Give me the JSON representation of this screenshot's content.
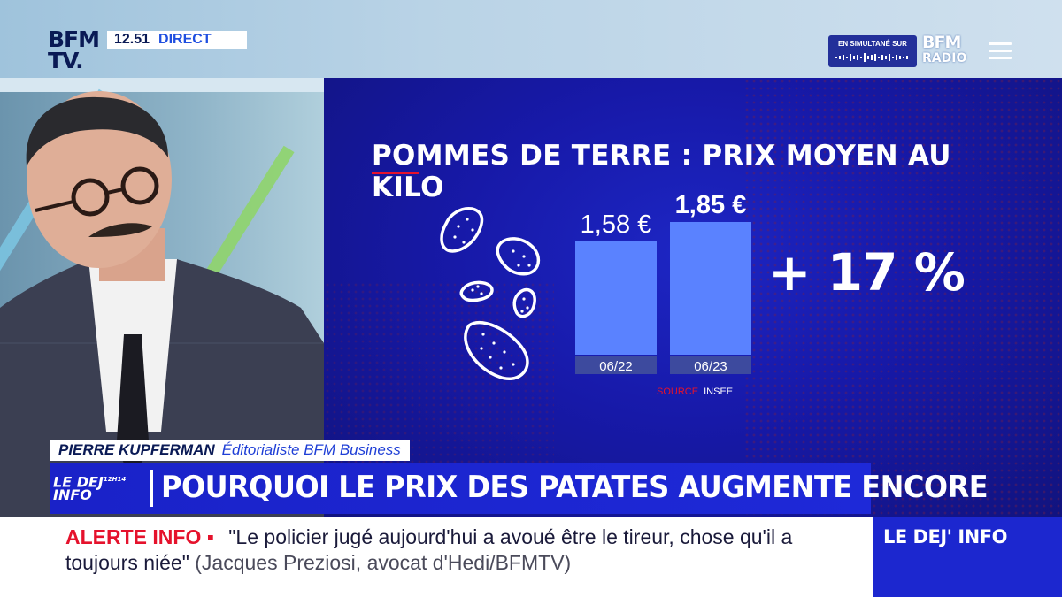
{
  "channel": {
    "logo_line1": "BFM",
    "logo_line2": "TV.",
    "time": "12.51",
    "live_label": "DIRECT",
    "simulcast_label": "EN SIMULTANÉ SUR",
    "radio_logo_line1": "BFM",
    "radio_logo_line2": "RADIO"
  },
  "chart_data": {
    "type": "bar",
    "title": "POMMES DE TERRE : PRIX MOYEN AU KILO",
    "categories": [
      "06/22",
      "06/23"
    ],
    "values": [
      1.58,
      1.85
    ],
    "value_labels": [
      "1,58 €",
      "1,85 €"
    ],
    "change_label": "+ 17 %",
    "source_prefix": "SOURCE",
    "source_name": "INSEE",
    "ylim": [
      0,
      1.85
    ],
    "colors": {
      "bar": "#5a82ff",
      "tick_bg": "#3d4a9e"
    }
  },
  "lower_third": {
    "name": "PIERRE KUPFERMAN",
    "role": "Éditorialiste BFM Business",
    "show_logo_line1": "LE DEJ",
    "show_logo_line2": "INFO",
    "show_logo_time": "12H14",
    "headline": "POURQUOI LE PRIX DES PATATES AUGMENTE ENCORE"
  },
  "ticker": {
    "alert_label": "ALERTE INFO ▪",
    "quote": "\"Le policier jugé aujourd'hui a avoué être le tireur, chose qu'il a toujours niée\"",
    "cite": "(Jacques Preziosi, avocat d'Hedi/BFMTV)",
    "show_name": "LE DEJ' INFO"
  },
  "icons": [
    "menu-icon",
    "potato-icon",
    "audio-wave-icon"
  ]
}
